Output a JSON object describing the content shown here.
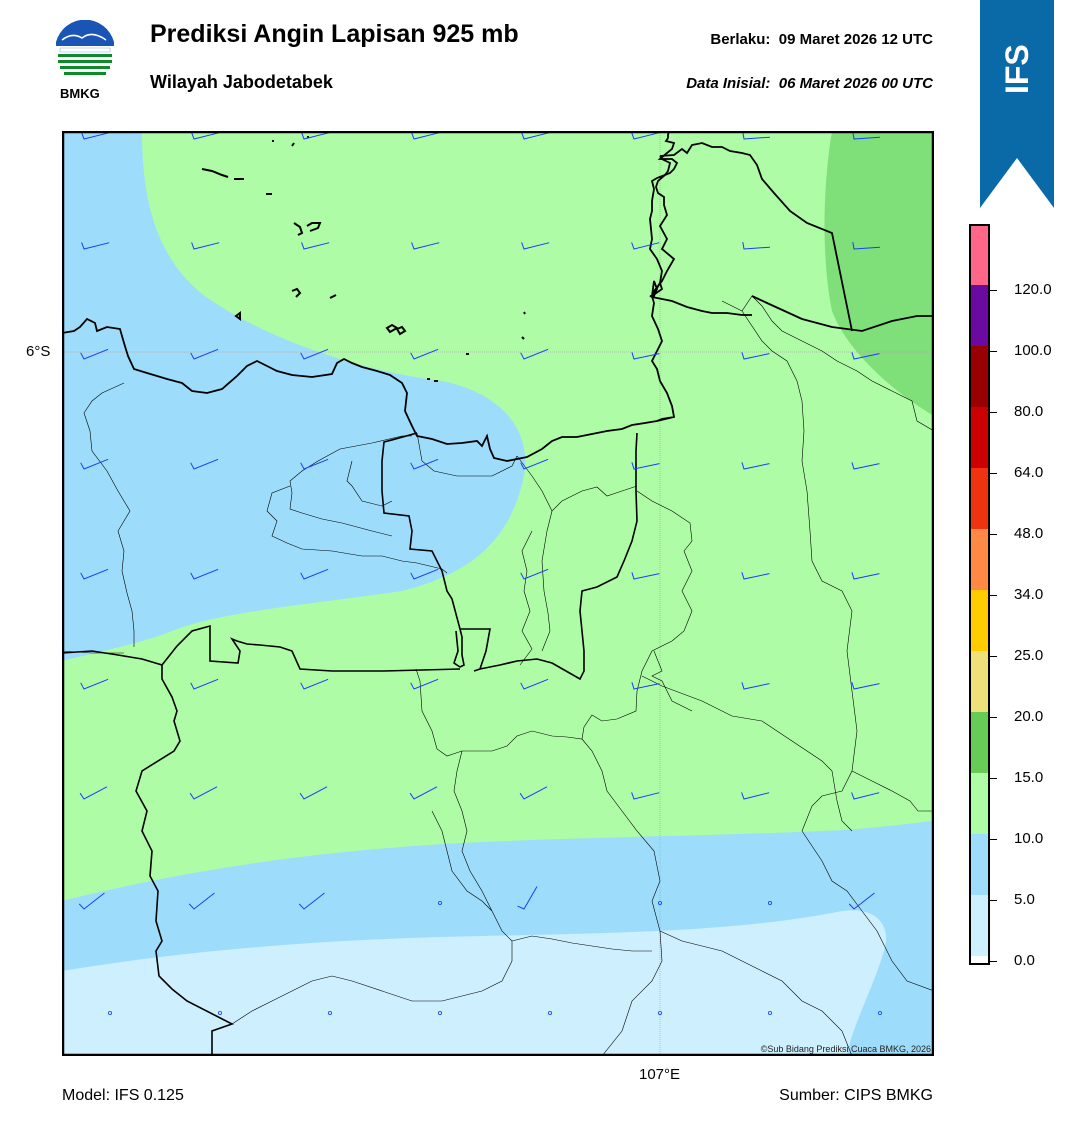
{
  "header": {
    "title": "Prediksi Angin Lapisan 925 mb",
    "subtitle": "Wilayah Jabodetabek",
    "valid_label": "Berlaku:",
    "valid_time": "09 Maret 2026 12 UTC",
    "initial_label": "Data Inisial:",
    "initial_time": "06 Maret 2026 00 UTC"
  },
  "logo": {
    "text": "BMKG"
  },
  "ribbon": {
    "text": "IFS",
    "color": "#0a6aa8"
  },
  "map": {
    "lat_label": "6°S",
    "lon_label": "107°E",
    "credit": "©Sub Bidang Prediksi Cuaca BMKG, 2026",
    "barb_color": "#1a3cff",
    "colors": {
      "band_0_5": "#cdeffe",
      "band_5_10": "#9edcfb",
      "band_10_15": "#aefca6",
      "band_15_20": "#7fdf78",
      "coast": "#000000"
    }
  },
  "colorbar": {
    "labels": [
      "0.0",
      "5.0",
      "10.0",
      "15.0",
      "20.0",
      "25.0",
      "34.0",
      "48.0",
      "64.0",
      "80.0",
      "100.0",
      "120.0"
    ],
    "colors": [
      "#ffffff",
      "#cdeffe",
      "#9edcfb",
      "#aefca6",
      "#66cc55",
      "#f0e07a",
      "#ffcc00",
      "#ff8844",
      "#ee3311",
      "#cc0000",
      "#990000",
      "#6a0aa0",
      "#ff6688"
    ]
  },
  "footer": {
    "model": "Model: IFS 0.125",
    "source": "Sumber: CIPS BMKG"
  }
}
